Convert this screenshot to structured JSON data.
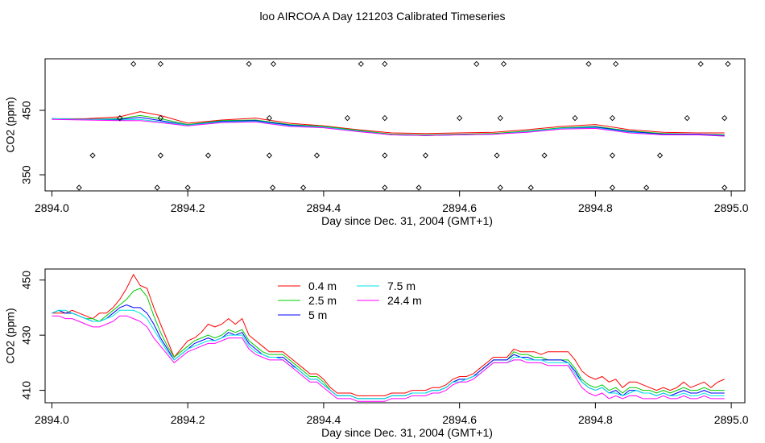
{
  "figure": {
    "title": "loo AIRCOA A  Day 121203  Calibrated Timeseries"
  },
  "colors": {
    "0.4 m": "#ff0000",
    "2.5 m": "#00cc00",
    "5 m": "#0000ff",
    "7.5 m": "#00e5e5",
    "24.4 m": "#ff00ff",
    "axis": "#000000",
    "points": "#000000"
  },
  "chart_data": [
    {
      "type": "line",
      "panel": "top",
      "xlabel": "Day since Dec. 31, 2004 (GMT+1)",
      "ylabel": "CO2 (ppm)",
      "xlim": [
        2893.99,
        2895.02
      ],
      "ylim": [
        325,
        530
      ],
      "x_ticks": [
        "2894.0",
        "2894.2",
        "2894.4",
        "2894.6",
        "2894.8",
        "2895.0"
      ],
      "y_ticks": [
        "350",
        "450"
      ],
      "grid": false,
      "x": [
        2894.0,
        2894.05,
        2894.1,
        2894.13,
        2894.16,
        2894.2,
        2894.25,
        2894.3,
        2894.35,
        2894.4,
        2894.45,
        2894.5,
        2894.55,
        2894.6,
        2894.65,
        2894.7,
        2894.75,
        2894.8,
        2894.85,
        2894.9,
        2894.95,
        2894.99
      ],
      "series": [
        {
          "name": "0.4 m",
          "values": [
            437,
            437,
            440,
            448,
            442,
            430,
            435,
            438,
            430,
            426,
            420,
            415,
            414,
            415,
            416,
            420,
            425,
            428,
            420,
            416,
            415,
            415
          ]
        },
        {
          "name": "2.5 m",
          "values": [
            437,
            436,
            437,
            442,
            437,
            428,
            434,
            435,
            428,
            425,
            419,
            413,
            412,
            413,
            414,
            418,
            423,
            425,
            418,
            414,
            413,
            412
          ]
        },
        {
          "name": "5 m",
          "values": [
            437,
            436,
            436,
            439,
            434,
            427,
            433,
            434,
            427,
            424,
            418,
            412,
            411,
            412,
            413,
            417,
            422,
            424,
            417,
            413,
            413,
            411
          ]
        },
        {
          "name": "7.5 m",
          "values": [
            437,
            436,
            435,
            436,
            432,
            427,
            432,
            433,
            426,
            424,
            418,
            412,
            411,
            412,
            413,
            417,
            422,
            423,
            416,
            412,
            412,
            410
          ]
        },
        {
          "name": "24.4 m",
          "values": [
            436,
            435,
            434,
            434,
            431,
            426,
            431,
            432,
            425,
            423,
            417,
            412,
            411,
            412,
            413,
            416,
            421,
            422,
            415,
            412,
            412,
            410
          ]
        }
      ],
      "markers": {
        "x": [
          2894.04,
          2894.06,
          2894.1,
          2894.12,
          2894.155,
          2894.16,
          2894.16,
          2894.16,
          2894.2,
          2894.23,
          2894.29,
          2894.32,
          2894.32,
          2894.325,
          2894.326,
          2894.37,
          2894.39,
          2894.435,
          2894.455,
          2894.49,
          2894.49,
          2894.49,
          2894.49,
          2894.54,
          2894.55,
          2894.6,
          2894.625,
          2894.655,
          2894.66,
          2894.66,
          2894.665,
          2894.705,
          2894.725,
          2894.77,
          2894.79,
          2894.825,
          2894.825,
          2894.825,
          2894.83,
          2894.875,
          2894.895,
          2894.935,
          2894.955,
          2894.99,
          2894.99,
          2894.995
        ],
        "y": [
          330,
          380,
          438,
          522,
          330,
          380,
          438,
          522,
          330,
          380,
          522,
          380,
          438,
          330,
          522,
          330,
          380,
          438,
          522,
          330,
          380,
          438,
          522,
          330,
          380,
          438,
          522,
          380,
          330,
          438,
          522,
          330,
          380,
          438,
          522,
          330,
          380,
          438,
          522,
          330,
          380,
          438,
          522,
          330,
          438,
          522
        ]
      }
    },
    {
      "type": "line",
      "panel": "bottom",
      "xlabel": "Day since Dec. 31, 2004 (GMT+1)",
      "ylabel": "CO2 (ppm)",
      "xlim": [
        2893.99,
        2895.02
      ],
      "ylim": [
        405.5,
        454
      ],
      "x_ticks": [
        "2894.0",
        "2894.2",
        "2894.4",
        "2894.6",
        "2894.8",
        "2895.0"
      ],
      "y_ticks": [
        "410",
        "430",
        "450"
      ],
      "grid": false,
      "legend": {
        "placement": "top-center",
        "columns": 2
      },
      "x": [
        2894.0,
        2894.01,
        2894.02,
        2894.03,
        2894.04,
        2894.05,
        2894.06,
        2894.07,
        2894.08,
        2894.09,
        2894.1,
        2894.11,
        2894.12,
        2894.13,
        2894.14,
        2894.15,
        2894.16,
        2894.17,
        2894.18,
        2894.19,
        2894.2,
        2894.21,
        2894.22,
        2894.23,
        2894.24,
        2894.25,
        2894.26,
        2894.27,
        2894.28,
        2894.29,
        2894.3,
        2894.31,
        2894.32,
        2894.33,
        2894.34,
        2894.35,
        2894.36,
        2894.37,
        2894.38,
        2894.39,
        2894.4,
        2894.41,
        2894.42,
        2894.43,
        2894.44,
        2894.45,
        2894.46,
        2894.47,
        2894.48,
        2894.49,
        2894.5,
        2894.51,
        2894.52,
        2894.53,
        2894.54,
        2894.55,
        2894.56,
        2894.57,
        2894.58,
        2894.59,
        2894.6,
        2894.61,
        2894.62,
        2894.63,
        2894.64,
        2894.65,
        2894.66,
        2894.67,
        2894.68,
        2894.69,
        2894.7,
        2894.71,
        2894.72,
        2894.73,
        2894.74,
        2894.75,
        2894.76,
        2894.77,
        2894.78,
        2894.79,
        2894.8,
        2894.81,
        2894.82,
        2894.83,
        2894.84,
        2894.85,
        2894.86,
        2894.87,
        2894.88,
        2894.89,
        2894.9,
        2894.91,
        2894.92,
        2894.93,
        2894.94,
        2894.95,
        2894.96,
        2894.97,
        2894.98,
        2894.99
      ],
      "series": [
        {
          "name": "0.4 m",
          "values": [
            438,
            438,
            438,
            439,
            438,
            437,
            436,
            438,
            438,
            440,
            443,
            447,
            452,
            448,
            447,
            440,
            434,
            428,
            422,
            425,
            428,
            429,
            431,
            434,
            433,
            434,
            436,
            434,
            436,
            430,
            428,
            426,
            424,
            424,
            424,
            422,
            420,
            418,
            416,
            416,
            414,
            411,
            409,
            409,
            409,
            408,
            408,
            408,
            408,
            408,
            409,
            409,
            409,
            410,
            410,
            410,
            411,
            411,
            412,
            414,
            415,
            415,
            416,
            418,
            420,
            422,
            422,
            422,
            425,
            424,
            424,
            424,
            423,
            424,
            424,
            424,
            424,
            421,
            417,
            415,
            414,
            415,
            413,
            414,
            411,
            413,
            413,
            412,
            411,
            410,
            411,
            410,
            411,
            413,
            411,
            412,
            413,
            411,
            413,
            414
          ]
        },
        {
          "name": "2.5 m",
          "values": [
            438,
            439,
            438,
            438,
            437,
            436,
            436,
            435,
            437,
            439,
            441,
            443,
            446,
            447,
            444,
            437,
            431,
            426,
            422,
            424,
            426,
            428,
            429,
            430,
            429,
            430,
            432,
            431,
            432,
            428,
            426,
            424,
            423,
            423,
            423,
            421,
            419,
            417,
            415,
            415,
            413,
            410,
            408,
            408,
            408,
            407,
            407,
            407,
            407,
            407,
            408,
            408,
            408,
            409,
            409,
            409,
            410,
            410,
            411,
            413,
            414,
            414,
            415,
            417,
            419,
            421,
            421,
            421,
            424,
            423,
            423,
            422,
            422,
            421,
            421,
            421,
            421,
            418,
            414,
            412,
            411,
            412,
            410,
            411,
            409,
            411,
            411,
            410,
            410,
            409,
            410,
            409,
            410,
            411,
            410,
            410,
            411,
            410,
            410,
            410
          ]
        },
        {
          "name": "5 m",
          "values": [
            438,
            439,
            438,
            438,
            437,
            436,
            435,
            435,
            436,
            438,
            440,
            441,
            440,
            440,
            438,
            434,
            429,
            425,
            421,
            423,
            425,
            427,
            428,
            429,
            428,
            429,
            431,
            430,
            431,
            427,
            425,
            423,
            422,
            422,
            422,
            420,
            418,
            416,
            414,
            414,
            412,
            410,
            408,
            408,
            408,
            407,
            407,
            407,
            407,
            407,
            408,
            408,
            408,
            409,
            409,
            409,
            410,
            410,
            411,
            413,
            414,
            414,
            415,
            417,
            419,
            421,
            421,
            421,
            423,
            422,
            422,
            421,
            421,
            421,
            421,
            421,
            420,
            417,
            413,
            411,
            410,
            411,
            409,
            410,
            408,
            410,
            410,
            409,
            409,
            408,
            409,
            408,
            409,
            410,
            409,
            409,
            410,
            409,
            409,
            409
          ]
        },
        {
          "name": "7.5 m",
          "values": [
            438,
            439,
            439,
            438,
            437,
            436,
            435,
            435,
            436,
            437,
            439,
            439,
            439,
            438,
            436,
            432,
            428,
            424,
            421,
            423,
            425,
            426,
            427,
            428,
            428,
            429,
            430,
            430,
            430,
            426,
            424,
            423,
            422,
            422,
            421,
            419,
            418,
            416,
            414,
            414,
            412,
            410,
            408,
            408,
            408,
            407,
            407,
            407,
            407,
            407,
            408,
            408,
            408,
            409,
            409,
            409,
            410,
            410,
            411,
            413,
            413,
            414,
            415,
            416,
            418,
            420,
            420,
            420,
            422,
            422,
            421,
            421,
            421,
            420,
            420,
            420,
            420,
            416,
            413,
            411,
            410,
            411,
            409,
            409,
            408,
            409,
            410,
            409,
            409,
            408,
            409,
            408,
            408,
            409,
            408,
            408,
            409,
            408,
            408,
            408
          ]
        },
        {
          "name": "24.4 m",
          "values": [
            437,
            437,
            436,
            436,
            435,
            434,
            433,
            433,
            434,
            435,
            437,
            437,
            436,
            435,
            433,
            429,
            426,
            423,
            420,
            422,
            424,
            425,
            426,
            427,
            427,
            428,
            429,
            429,
            429,
            425,
            423,
            422,
            421,
            421,
            421,
            419,
            417,
            415,
            413,
            413,
            411,
            409,
            407,
            407,
            407,
            406,
            406,
            406,
            406,
            406,
            407,
            407,
            407,
            408,
            408,
            408,
            409,
            409,
            410,
            412,
            413,
            413,
            414,
            416,
            418,
            420,
            420,
            420,
            421,
            421,
            420,
            420,
            420,
            419,
            419,
            419,
            419,
            415,
            411,
            409,
            408,
            409,
            407,
            408,
            407,
            408,
            408,
            407,
            407,
            407,
            408,
            407,
            407,
            408,
            407,
            407,
            408,
            407,
            407,
            407
          ]
        }
      ]
    }
  ]
}
